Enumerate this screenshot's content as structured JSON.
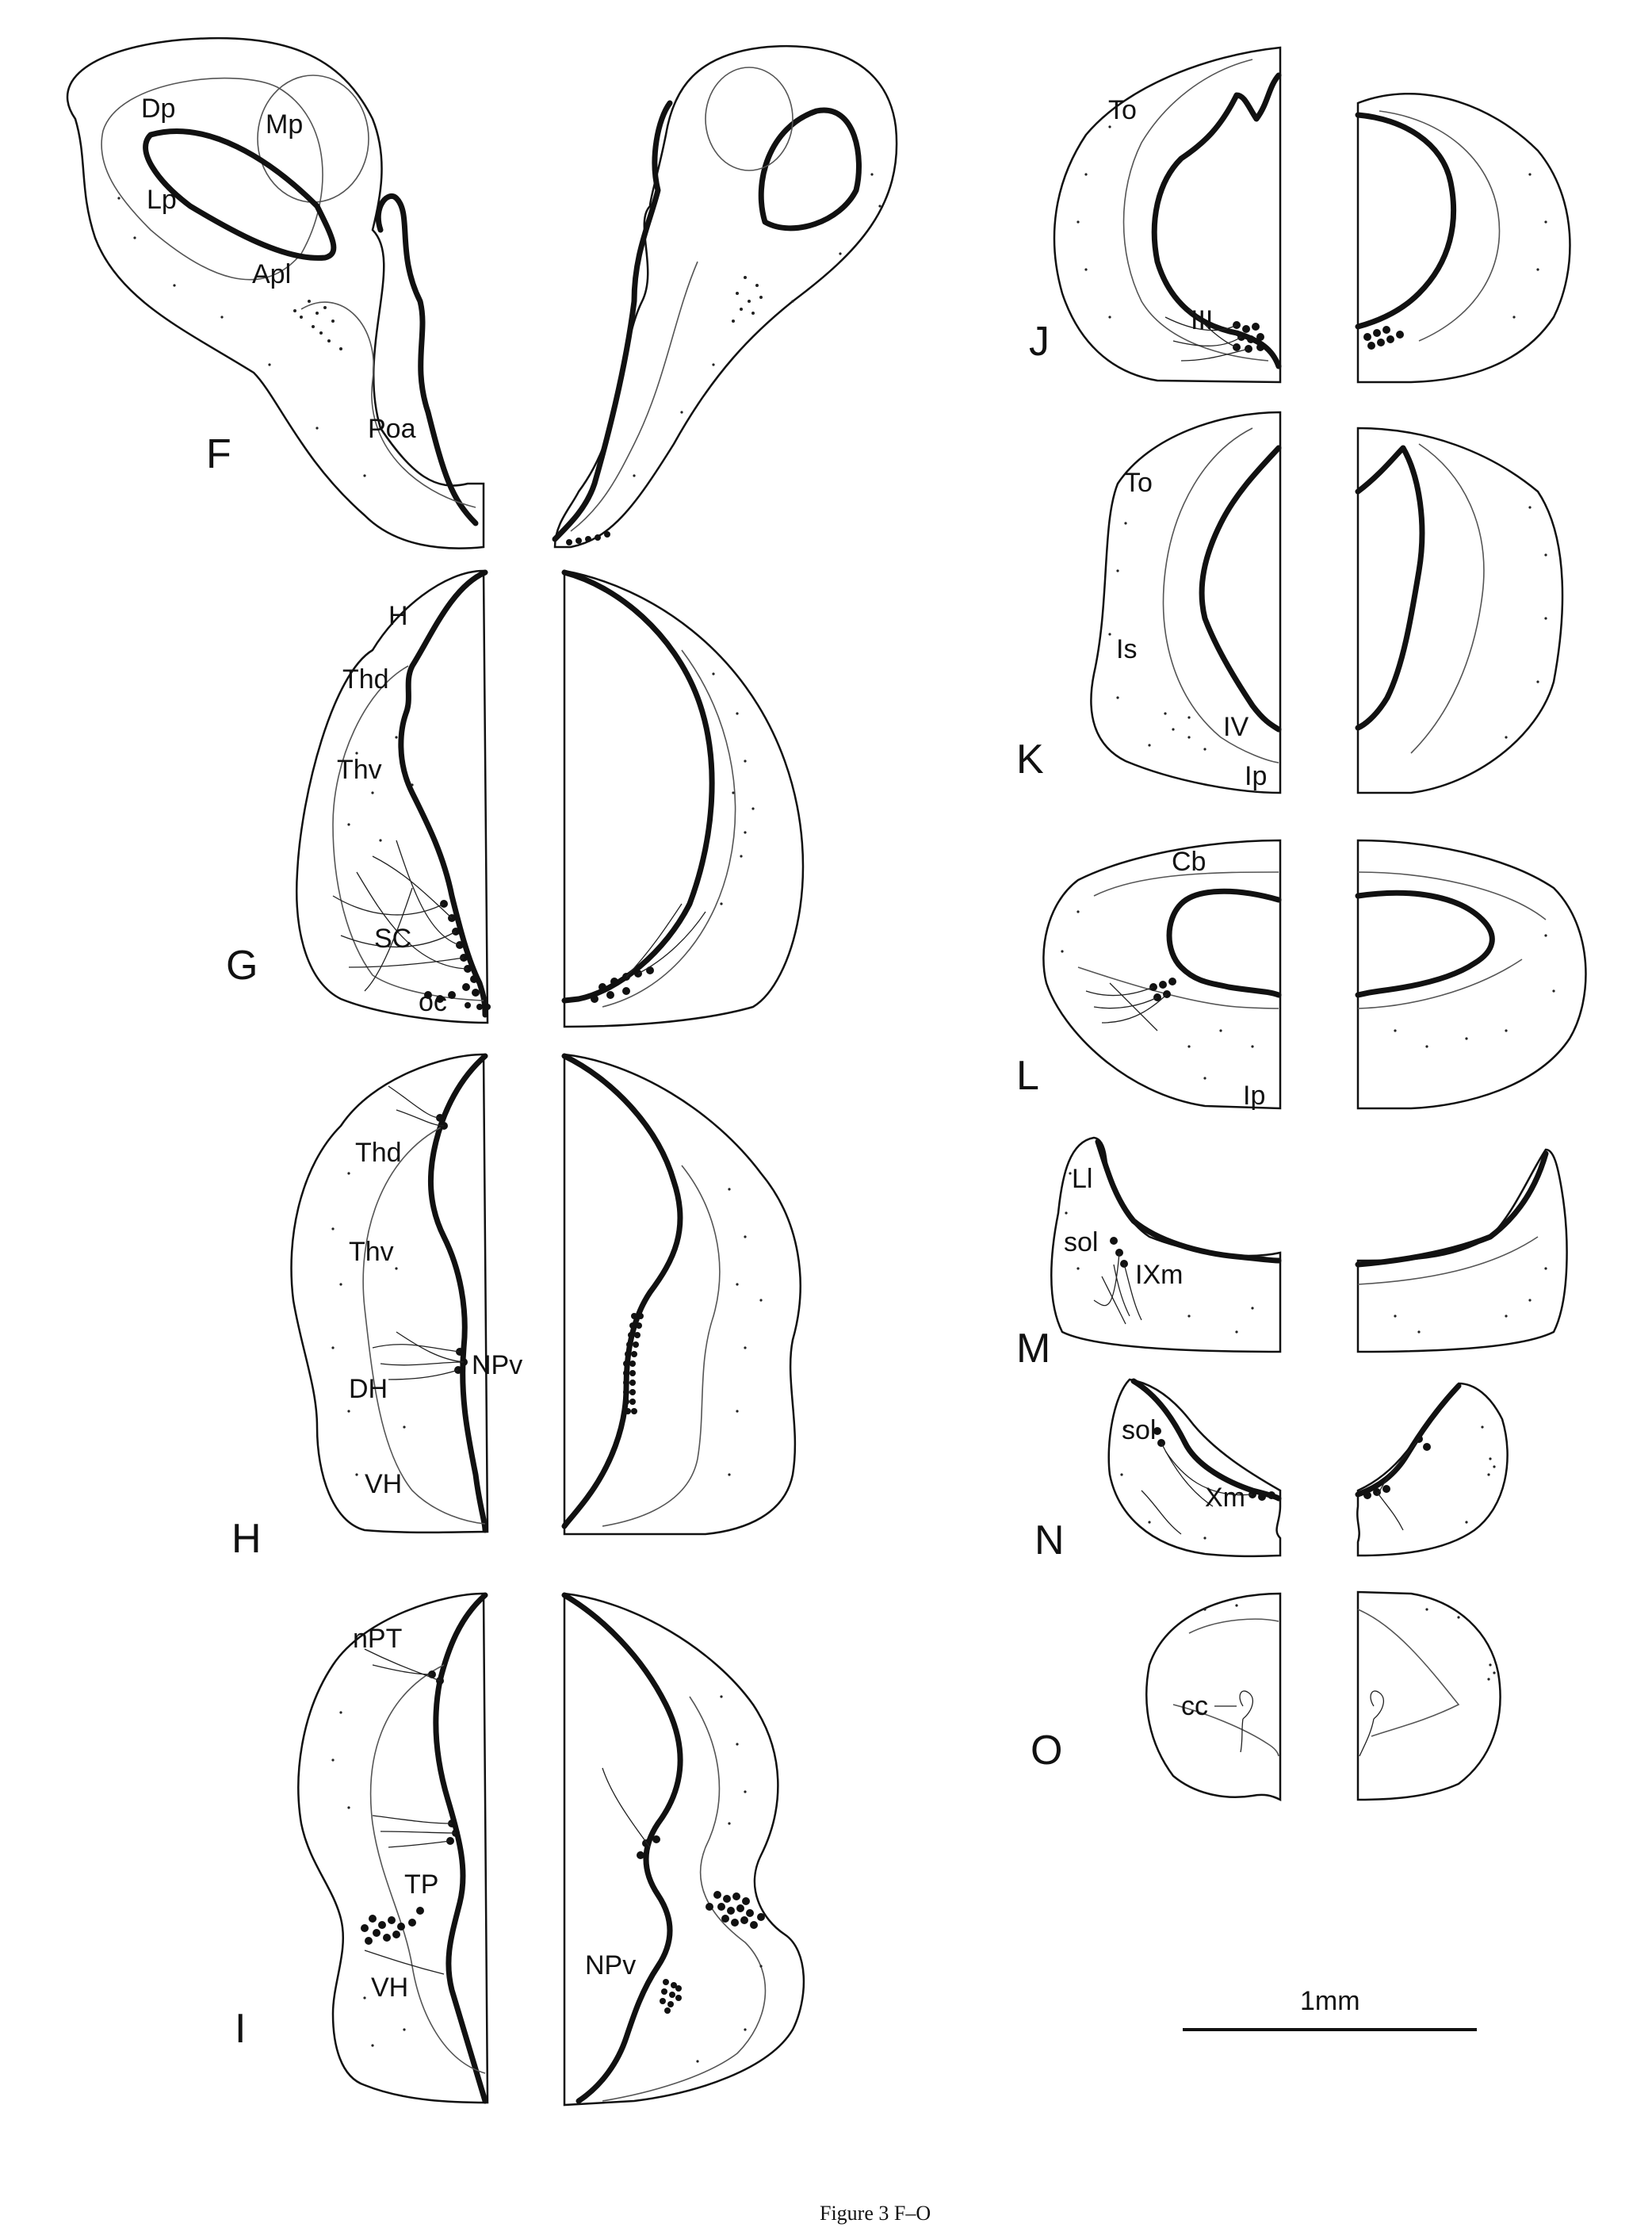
{
  "figure": {
    "caption": "Figure 3 F–O",
    "scale_bar_label": "1mm"
  },
  "sections": [
    {
      "id": "F",
      "label": "F",
      "regions": [
        "Dp",
        "Mp",
        "Lp",
        "Apl",
        "Poa"
      ]
    },
    {
      "id": "G",
      "label": "G",
      "regions": [
        "H",
        "Thd",
        "Thv",
        "SC",
        "oc"
      ]
    },
    {
      "id": "H",
      "label": "H",
      "regions": [
        "Thd",
        "Thv",
        "NPv",
        "DH",
        "VH"
      ]
    },
    {
      "id": "I",
      "label": "I",
      "regions": [
        "nPT",
        "TP",
        "VH",
        "NPv"
      ]
    },
    {
      "id": "J",
      "label": "J",
      "regions": [
        "To",
        "III"
      ]
    },
    {
      "id": "K",
      "label": "K",
      "regions": [
        "To",
        "Is",
        "IV",
        "Ip"
      ]
    },
    {
      "id": "L",
      "label": "L",
      "regions": [
        "Cb",
        "Ip"
      ]
    },
    {
      "id": "M",
      "label": "M",
      "regions": [
        "Ll",
        "sol",
        "IXm"
      ]
    },
    {
      "id": "N",
      "label": "N",
      "regions": [
        "sol",
        "Xm"
      ]
    },
    {
      "id": "O",
      "label": "O",
      "regions": [
        "cc"
      ]
    }
  ]
}
